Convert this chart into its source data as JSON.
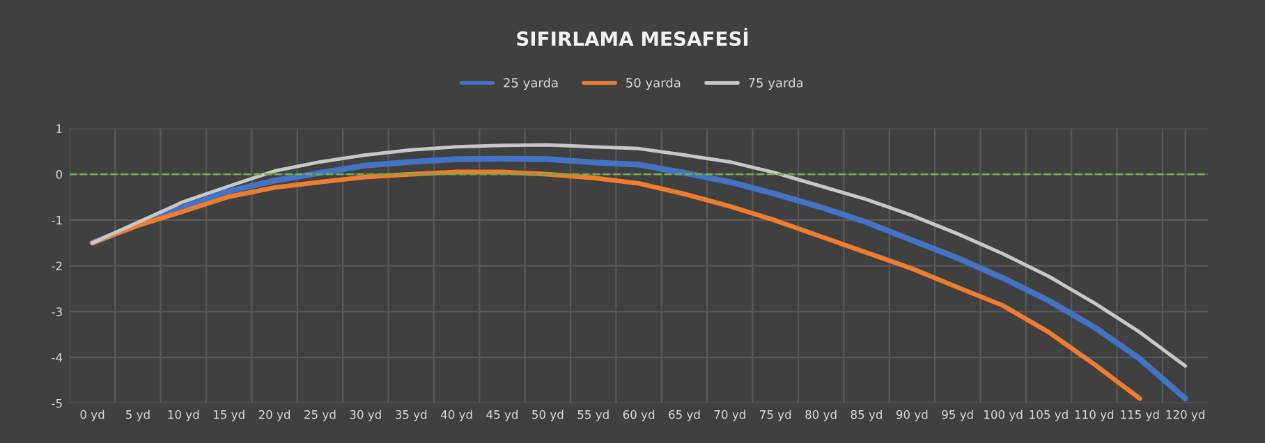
{
  "chart_data": {
    "type": "line",
    "title": "SIFIRLAMA MESAFESİ",
    "categories": [
      "0 yd",
      "5 yd",
      "10 yd",
      "15 yd",
      "20 yd",
      "25 yd",
      "30 yd",
      "35 yd",
      "40 yd",
      "45 yd",
      "50 yd",
      "55 yd",
      "60 yd",
      "65 yd",
      "70 yd",
      "75 yd",
      "80 yd",
      "85 yd",
      "90 yd",
      "95 yd",
      "100 yd",
      "105 yd",
      "110 yd",
      "115 yd",
      "120 yd"
    ],
    "series": [
      {
        "name": "25 yarda",
        "color": "#4472c4",
        "values": [
          -1.5,
          -1.1,
          -0.72,
          -0.37,
          -0.14,
          0.03,
          0.19,
          0.27,
          0.33,
          0.34,
          0.33,
          0.26,
          0.21,
          0.03,
          -0.17,
          -0.43,
          -0.72,
          -1.05,
          -1.44,
          -1.83,
          -2.27,
          -2.76,
          -3.34,
          -4.03,
          -4.9
        ]
      },
      {
        "name": "50 yarda",
        "color": "#ed7d31",
        "values": [
          -1.5,
          -1.12,
          -0.81,
          -0.49,
          -0.29,
          -0.17,
          -0.06,
          0.0,
          0.05,
          0.05,
          0.0,
          -0.08,
          -0.2,
          -0.43,
          -0.7,
          -1.01,
          -1.36,
          -1.71,
          -2.06,
          -2.47,
          -2.87,
          -3.45,
          -4.15,
          -4.9,
          null
        ]
      },
      {
        "name": "75 yarda",
        "color": "#c8c8c8",
        "values": [
          -1.5,
          -1.05,
          -0.6,
          -0.26,
          0.07,
          0.27,
          0.42,
          0.53,
          0.6,
          0.63,
          0.64,
          0.6,
          0.56,
          0.42,
          0.27,
          0.03,
          -0.26,
          -0.55,
          -0.9,
          -1.3,
          -1.74,
          -2.23,
          -2.81,
          -3.45,
          -4.19
        ]
      }
    ],
    "ylim": [
      -5,
      1
    ],
    "yticks": [
      1,
      0,
      -1,
      -2,
      -3,
      -4,
      -5
    ],
    "ref_lines": [
      {
        "axis": "y",
        "value": 0,
        "color": "#70ad47",
        "line_style": "dashed"
      }
    ],
    "grid": true,
    "legend": "top",
    "line_style": "solid",
    "marker": "none"
  }
}
